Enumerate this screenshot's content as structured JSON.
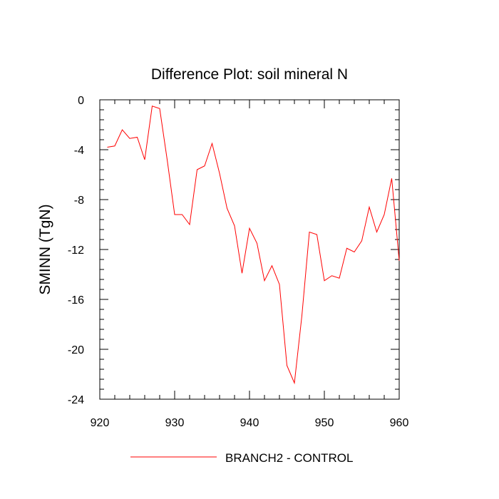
{
  "chart_data": {
    "type": "line",
    "title": "Difference Plot: soil mineral N",
    "xlabel": "",
    "ylabel": "SMINN  (TgN)",
    "xlim": [
      920,
      960
    ],
    "ylim": [
      -24,
      0
    ],
    "xticks": [
      920,
      930,
      940,
      950,
      960
    ],
    "yticks": [
      0,
      -4,
      -8,
      -12,
      -16,
      -20,
      -24
    ],
    "x_minor_step": 2,
    "y_minor_step": 0.8,
    "grid": false,
    "legend_position": "bottom-center",
    "series": [
      {
        "name": "BRANCH2 - CONTROL",
        "color": "#ff0000",
        "x": [
          921,
          922,
          923,
          924,
          925,
          926,
          927,
          928,
          929,
          930,
          931,
          932,
          933,
          934,
          935,
          936,
          937,
          938,
          939,
          940,
          941,
          942,
          943,
          944,
          945,
          946,
          947,
          948,
          949,
          950,
          951,
          952,
          953,
          954,
          955,
          956,
          957,
          958,
          959,
          960
        ],
        "values": [
          -3.8,
          -3.7,
          -2.4,
          -3.1,
          -3.0,
          -4.8,
          -0.5,
          -0.7,
          -4.8,
          -9.2,
          -9.2,
          -10.0,
          -5.6,
          -5.3,
          -3.5,
          -5.9,
          -8.7,
          -10.1,
          -13.9,
          -10.3,
          -11.5,
          -14.5,
          -13.3,
          -14.8,
          -21.3,
          -22.7,
          -17.3,
          -10.6,
          -10.8,
          -14.5,
          -14.1,
          -14.3,
          -11.9,
          -12.2,
          -11.3,
          -8.6,
          -10.6,
          -9.2,
          -6.3,
          -12.9
        ]
      }
    ]
  }
}
